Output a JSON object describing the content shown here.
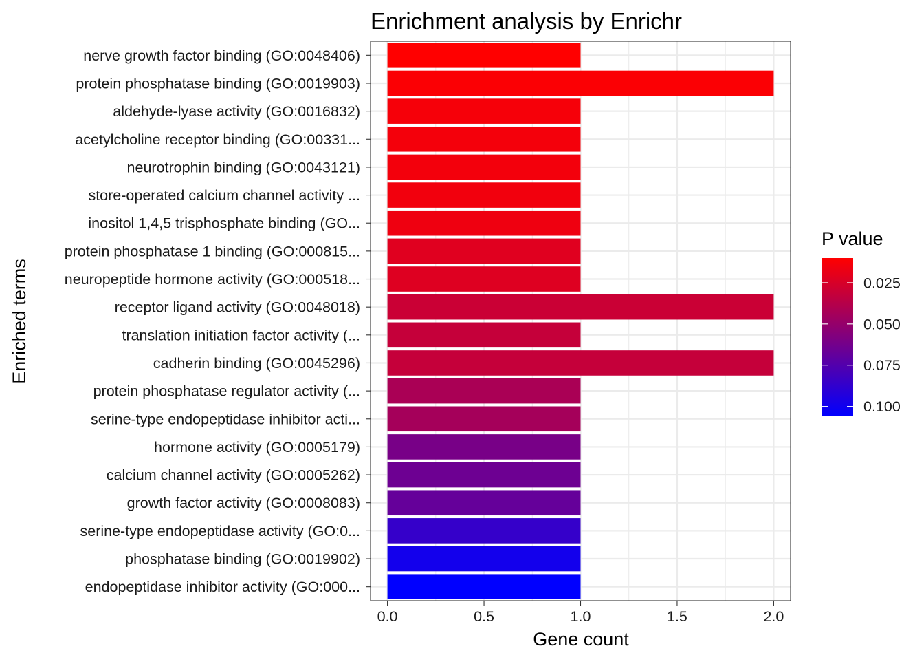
{
  "chart_data": {
    "type": "bar",
    "orientation": "horizontal",
    "title": "Enrichment analysis by Enrichr",
    "xlabel": "Gene count",
    "ylabel": "Enriched terms",
    "xlim": [
      -0.0875,
      2.0875
    ],
    "x_ticks": [
      0.0,
      0.5,
      1.0,
      1.5,
      2.0
    ],
    "x_tick_labels": [
      "0.0",
      "0.5",
      "1.0",
      "1.5",
      "2.0"
    ],
    "grid": true,
    "categories": [
      "nerve growth factor binding (GO:0048406)",
      "protein phosphatase binding (GO:0019903)",
      "aldehyde-lyase activity (GO:0016832)",
      "acetylcholine receptor binding (GO:00331...",
      "neurotrophin binding (GO:0043121)",
      "store-operated calcium channel activity ...",
      "inositol 1,4,5 trisphosphate binding (GO...",
      "protein phosphatase 1 binding (GO:000815...",
      "neuropeptide hormone activity (GO:000518...",
      "receptor ligand activity (GO:0048018)",
      "translation initiation factor activity (...",
      "cadherin binding (GO:0045296)",
      "protein phosphatase regulator activity (...",
      "serine-type endopeptidase inhibitor acti...",
      "hormone activity (GO:0005179)",
      "calcium channel activity (GO:0005262)",
      "growth factor activity (GO:0008083)",
      "serine-type endopeptidase activity (GO:0...",
      "phosphatase binding (GO:0019902)",
      "endopeptidase inhibitor activity (GO:000..."
    ],
    "values": [
      1,
      2,
      1,
      1,
      1,
      1,
      1,
      1,
      1,
      2,
      1,
      2,
      1,
      1,
      1,
      1,
      1,
      1,
      1,
      1
    ],
    "p_values": [
      0.01,
      0.0115,
      0.0135,
      0.014,
      0.0145,
      0.015,
      0.016,
      0.0215,
      0.0225,
      0.03,
      0.032,
      0.032,
      0.042,
      0.044,
      0.061,
      0.065,
      0.068,
      0.086,
      0.099,
      0.106
    ],
    "legend": {
      "title": "P value",
      "position": "right",
      "scale_min": 0.01,
      "scale_max": 0.106,
      "low_color": "#FF0000",
      "high_color": "#0000FF",
      "ticks": [
        0.025,
        0.05,
        0.075,
        0.1
      ],
      "tick_labels": [
        "0.025",
        "0.050",
        "0.075",
        "0.100"
      ]
    }
  }
}
